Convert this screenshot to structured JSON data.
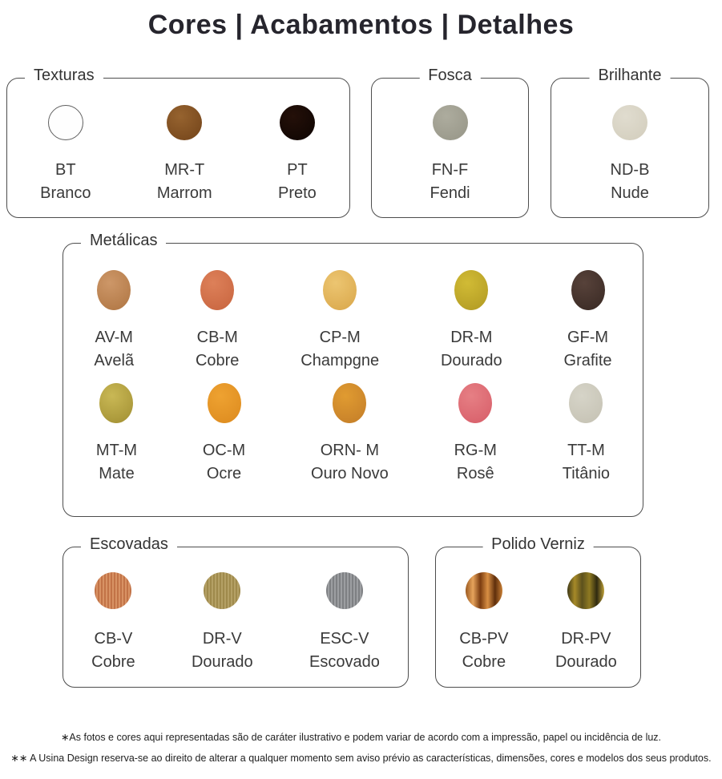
{
  "title": "Cores | Acabamentos | Detalhes",
  "sections": {
    "texturas": {
      "label": "Texturas",
      "items": [
        {
          "code": "BT",
          "name": "Branco",
          "finish": "outlined",
          "colors": [
            "#fefefe",
            "#f6f6f6"
          ]
        },
        {
          "code": "MR-T",
          "name": "Marrom",
          "finish": "texture",
          "colors": [
            "#96632f",
            "#7a4a1e"
          ]
        },
        {
          "code": "PT",
          "name": "Preto",
          "finish": "texture",
          "colors": [
            "#241009",
            "#120703"
          ]
        }
      ]
    },
    "fosca": {
      "label": "Fosca",
      "items": [
        {
          "code": "FN-F",
          "name": "Fendi",
          "finish": "texture",
          "colors": [
            "#adac9e",
            "#9b9a8c"
          ]
        }
      ]
    },
    "brilhante": {
      "label": "Brilhante",
      "items": [
        {
          "code": "ND-B",
          "name": "Nude",
          "finish": "texture",
          "colors": [
            "#e0dccf",
            "#d5d0c0"
          ]
        }
      ]
    },
    "metalicas": {
      "label": "Metálicas",
      "items": [
        {
          "code": "AV-M",
          "name": "Avelã",
          "finish": "texture",
          "colors": [
            "#cd9768",
            "#b57c4a"
          ]
        },
        {
          "code": "CB-M",
          "name": "Cobre",
          "finish": "texture",
          "colors": [
            "#dd8059",
            "#cc6a44"
          ]
        },
        {
          "code": "CP-M",
          "name": "Champgne",
          "finish": "texture",
          "colors": [
            "#ecc571",
            "#ddad52"
          ]
        },
        {
          "code": "DR-M",
          "name": "Dourado",
          "finish": "texture",
          "colors": [
            "#d1bb35",
            "#b7a026"
          ]
        },
        {
          "code": "GF-M",
          "name": "Grafite",
          "finish": "texture",
          "colors": [
            "#57423a",
            "#3f2e28"
          ]
        },
        {
          "code": "MT-M",
          "name": "Mate",
          "finish": "texture",
          "colors": [
            "#c9b855",
            "#a99739"
          ]
        },
        {
          "code": "OC-M",
          "name": "Ocre",
          "finish": "texture",
          "colors": [
            "#eea231",
            "#e08f22"
          ]
        },
        {
          "code": "ORN- M",
          "name": "Ouro Novo",
          "finish": "texture",
          "colors": [
            "#e09b31",
            "#c9832a"
          ]
        },
        {
          "code": "RG-M",
          "name": "Rosê",
          "finish": "texture",
          "colors": [
            "#e67f84",
            "#da646e"
          ]
        },
        {
          "code": "TT-M",
          "name": "Titânio",
          "finish": "texture",
          "colors": [
            "#d6d4c8",
            "#c8c5b7"
          ]
        }
      ]
    },
    "escovadas": {
      "label": "Escovadas",
      "items": [
        {
          "code": "CB-V",
          "name": "Cobre",
          "finish": "brushed",
          "colors": [
            "#c27347",
            "#d89264"
          ]
        },
        {
          "code": "DR-V",
          "name": "Dourado",
          "finish": "brushed",
          "colors": [
            "#9f8a4c",
            "#b4a065"
          ]
        },
        {
          "code": "ESC-V",
          "name": "Escovado",
          "finish": "brushed",
          "colors": [
            "#7e8083",
            "#9c9ea1"
          ]
        }
      ]
    },
    "polido": {
      "label": "Polido Verniz",
      "items": [
        {
          "code": "CB-PV",
          "name": "Cobre",
          "finish": "polished",
          "colors": [
            "#9c5a20",
            "#e6a35c",
            "#7b3c10",
            "#d98f43",
            "#5f2f0c",
            "#c87f35"
          ]
        },
        {
          "code": "DR-PV",
          "name": "Dourado",
          "finish": "polished",
          "colors": [
            "#3f3a17",
            "#a78a28",
            "#5c511d",
            "#8f7a22",
            "#2f2a10",
            "#bfa23a"
          ]
        }
      ]
    }
  },
  "footnotes": [
    "∗As fotos e cores aqui representadas são de caráter ilustrativo e podem variar de acordo com a impressão, papel ou incidência de luz.",
    "∗∗ A Usina Design reserva-se ao direito de alterar a qualquer momento sem aviso prévio as características, dimensões, cores e modelos dos seus produtos."
  ]
}
